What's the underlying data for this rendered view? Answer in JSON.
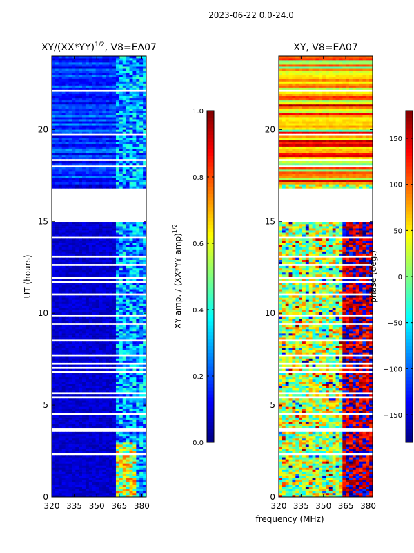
{
  "chart_data": {
    "suptitle": "2023-06-22 0.0-24.0",
    "shared_xlabel": "frequency (MHz)",
    "panels": [
      {
        "type": "heatmap",
        "title_prefix": "XY/(XX*YY)",
        "title_exponent": "1/2",
        "title_suffix": ", V8=EA07",
        "xlabel": "",
        "ylabel": "UT (hours)",
        "xlim": [
          320,
          383
        ],
        "ylim": [
          0,
          24
        ],
        "xticks": [
          320,
          335,
          350,
          365,
          380
        ],
        "xtick_labels": [
          "320",
          "335",
          "350",
          "365",
          "380"
        ],
        "yticks": [
          0,
          5,
          10,
          15,
          20
        ],
        "ytick_labels": [
          "0",
          "5",
          "10",
          "15",
          "20"
        ],
        "gap_hours": [
          15.0,
          16.8
        ],
        "colorbar": {
          "label_prefix": "XY amp. / (XX*YY amp)",
          "label_exponent": "1/2",
          "min": 0.0,
          "max": 1.0,
          "ticks": [
            0.0,
            0.2,
            0.4,
            0.6,
            0.8,
            1.0
          ],
          "tick_labels": [
            "0.0",
            "0.2",
            "0.4",
            "0.6",
            "0.8",
            "1.0"
          ],
          "colormap": "jet"
        }
      },
      {
        "type": "heatmap",
        "title_prefix": "XY, V8=EA07",
        "title_exponent": "",
        "title_suffix": "",
        "xlabel": "",
        "ylabel": "",
        "xlim": [
          320,
          383
        ],
        "ylim": [
          0,
          24
        ],
        "xticks": [
          320,
          335,
          350,
          365,
          380
        ],
        "xtick_labels": [
          "320",
          "335",
          "350",
          "365",
          "380"
        ],
        "yticks": [
          0,
          5,
          10,
          15,
          20
        ],
        "ytick_labels": [
          "0",
          "5",
          "10",
          "15",
          "20"
        ],
        "gap_hours": [
          15.0,
          16.8
        ],
        "colorbar": {
          "label_prefix": "phase (deg.)",
          "label_exponent": "",
          "min": -180,
          "max": 180,
          "ticks": [
            -150,
            -100,
            -50,
            0,
            50,
            100,
            150
          ],
          "tick_labels": [
            "−150",
            "−100",
            "−50",
            "0",
            "50",
            "100",
            "150"
          ],
          "colormap": "jet"
        }
      }
    ]
  }
}
